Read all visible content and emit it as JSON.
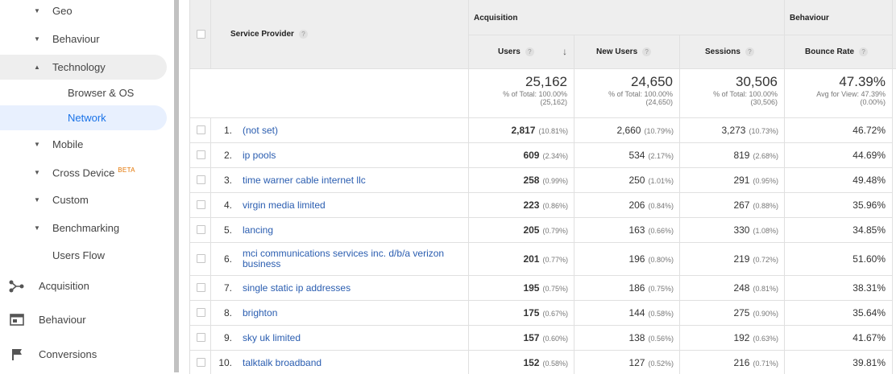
{
  "sidebar": {
    "items": [
      {
        "label": "Geo",
        "caret": "▼"
      },
      {
        "label": "Behaviour",
        "caret": "▼"
      },
      {
        "label": "Technology",
        "caret": "▲"
      },
      {
        "label": "Browser & OS"
      },
      {
        "label": "Network"
      },
      {
        "label": "Mobile",
        "caret": "▼"
      },
      {
        "label": "Cross Device",
        "caret": "▼",
        "badge": "BETA"
      },
      {
        "label": "Custom",
        "caret": "▼"
      },
      {
        "label": "Benchmarking",
        "caret": "▼"
      },
      {
        "label": "Users Flow"
      },
      {
        "label": "Acquisition",
        "icon": "acquisition-icon"
      },
      {
        "label": "Behaviour",
        "icon": "behaviour-icon"
      },
      {
        "label": "Conversions",
        "icon": "flag-icon"
      }
    ]
  },
  "table": {
    "header": {
      "dimension": "Service Provider",
      "acquisition": "Acquisition",
      "behaviour": "Behaviour",
      "columns": [
        "Users",
        "New Users",
        "Sessions",
        "Bounce Rate"
      ],
      "help": "?",
      "sort_arrow": "↓"
    },
    "totals": [
      {
        "value": "25,162",
        "line1": "% of Total: 100.00%",
        "line2": "(25,162)"
      },
      {
        "value": "24,650",
        "line1": "% of Total: 100.00%",
        "line2": "(24,650)"
      },
      {
        "value": "30,506",
        "line1": "% of Total: 100.00%",
        "line2": "(30,506)"
      },
      {
        "value": "47.39%",
        "line1": "Avg for View: 47.39%",
        "line2": "(0.00%)"
      }
    ],
    "rows": [
      {
        "num": "1.",
        "provider": "(not set)",
        "users": "2,817",
        "users_pct": "(10.81%)",
        "new_users": "2,660",
        "new_users_pct": "(10.79%)",
        "sessions": "3,273",
        "sessions_pct": "(10.73%)",
        "bounce": "46.72%"
      },
      {
        "num": "2.",
        "provider": "ip pools",
        "users": "609",
        "users_pct": "(2.34%)",
        "new_users": "534",
        "new_users_pct": "(2.17%)",
        "sessions": "819",
        "sessions_pct": "(2.68%)",
        "bounce": "44.69%"
      },
      {
        "num": "3.",
        "provider": "time warner cable internet llc",
        "users": "258",
        "users_pct": "(0.99%)",
        "new_users": "250",
        "new_users_pct": "(1.01%)",
        "sessions": "291",
        "sessions_pct": "(0.95%)",
        "bounce": "49.48%"
      },
      {
        "num": "4.",
        "provider": "virgin media limited",
        "users": "223",
        "users_pct": "(0.86%)",
        "new_users": "206",
        "new_users_pct": "(0.84%)",
        "sessions": "267",
        "sessions_pct": "(0.88%)",
        "bounce": "35.96%"
      },
      {
        "num": "5.",
        "provider": "lancing",
        "users": "205",
        "users_pct": "(0.79%)",
        "new_users": "163",
        "new_users_pct": "(0.66%)",
        "sessions": "330",
        "sessions_pct": "(1.08%)",
        "bounce": "34.85%"
      },
      {
        "num": "6.",
        "provider": "mci communications services inc. d/b/a verizon business",
        "users": "201",
        "users_pct": "(0.77%)",
        "new_users": "196",
        "new_users_pct": "(0.80%)",
        "sessions": "219",
        "sessions_pct": "(0.72%)",
        "bounce": "51.60%"
      },
      {
        "num": "7.",
        "provider": "single static ip addresses",
        "users": "195",
        "users_pct": "(0.75%)",
        "new_users": "186",
        "new_users_pct": "(0.75%)",
        "sessions": "248",
        "sessions_pct": "(0.81%)",
        "bounce": "38.31%"
      },
      {
        "num": "8.",
        "provider": "brighton",
        "users": "175",
        "users_pct": "(0.67%)",
        "new_users": "144",
        "new_users_pct": "(0.58%)",
        "sessions": "275",
        "sessions_pct": "(0.90%)",
        "bounce": "35.64%"
      },
      {
        "num": "9.",
        "provider": "sky uk limited",
        "users": "157",
        "users_pct": "(0.60%)",
        "new_users": "138",
        "new_users_pct": "(0.56%)",
        "sessions": "192",
        "sessions_pct": "(0.63%)",
        "bounce": "41.67%"
      },
      {
        "num": "10.",
        "provider": "talktalk broadband",
        "users": "152",
        "users_pct": "(0.58%)",
        "new_users": "127",
        "new_users_pct": "(0.52%)",
        "sessions": "216",
        "sessions_pct": "(0.71%)",
        "bounce": "39.81%"
      }
    ]
  },
  "colors": {
    "link": "#2a5db0",
    "active_nav": "#1a73e8",
    "beta_badge": "#e37400",
    "header_bg": "#eeeeee"
  }
}
